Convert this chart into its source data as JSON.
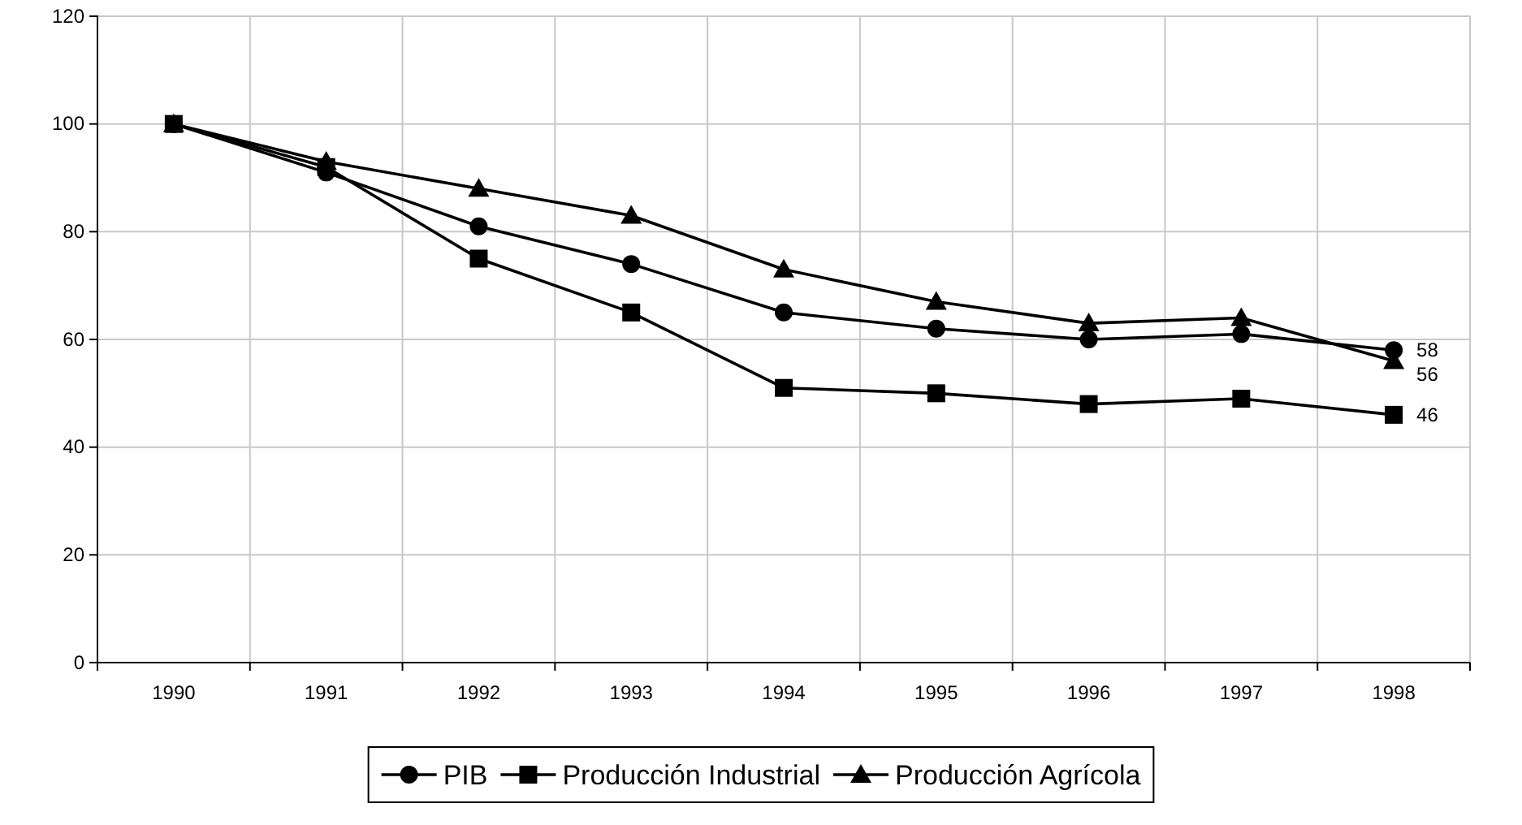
{
  "chart_data": {
    "type": "line",
    "categories": [
      "1990",
      "1991",
      "1992",
      "1993",
      "1994",
      "1995",
      "1996",
      "1997",
      "1998"
    ],
    "ylim": [
      0,
      120
    ],
    "yticks": [
      0,
      20,
      40,
      60,
      80,
      100,
      120
    ],
    "grid": true,
    "legend": "bottom",
    "line_style": "solid",
    "series": [
      {
        "name": "PIB",
        "color": "#000000",
        "marker": "circle",
        "values": [
          100,
          91,
          81,
          74,
          65,
          62,
          60,
          61,
          58
        ],
        "value_labels": [
          null,
          null,
          null,
          null,
          null,
          null,
          null,
          null,
          "58"
        ]
      },
      {
        "name": "Producción Industrial",
        "color": "#000000",
        "marker": "square",
        "values": [
          100,
          92,
          75,
          65,
          51,
          50,
          48,
          49,
          46
        ],
        "value_labels": [
          null,
          null,
          null,
          null,
          null,
          null,
          null,
          null,
          "46"
        ]
      },
      {
        "name": "Producción Agrícola",
        "color": "#000000",
        "marker": "triangle",
        "values": [
          100,
          93,
          88,
          83,
          73,
          67,
          63,
          64,
          56
        ],
        "value_labels": [
          null,
          null,
          null,
          null,
          null,
          null,
          null,
          null,
          "56"
        ]
      }
    ]
  }
}
